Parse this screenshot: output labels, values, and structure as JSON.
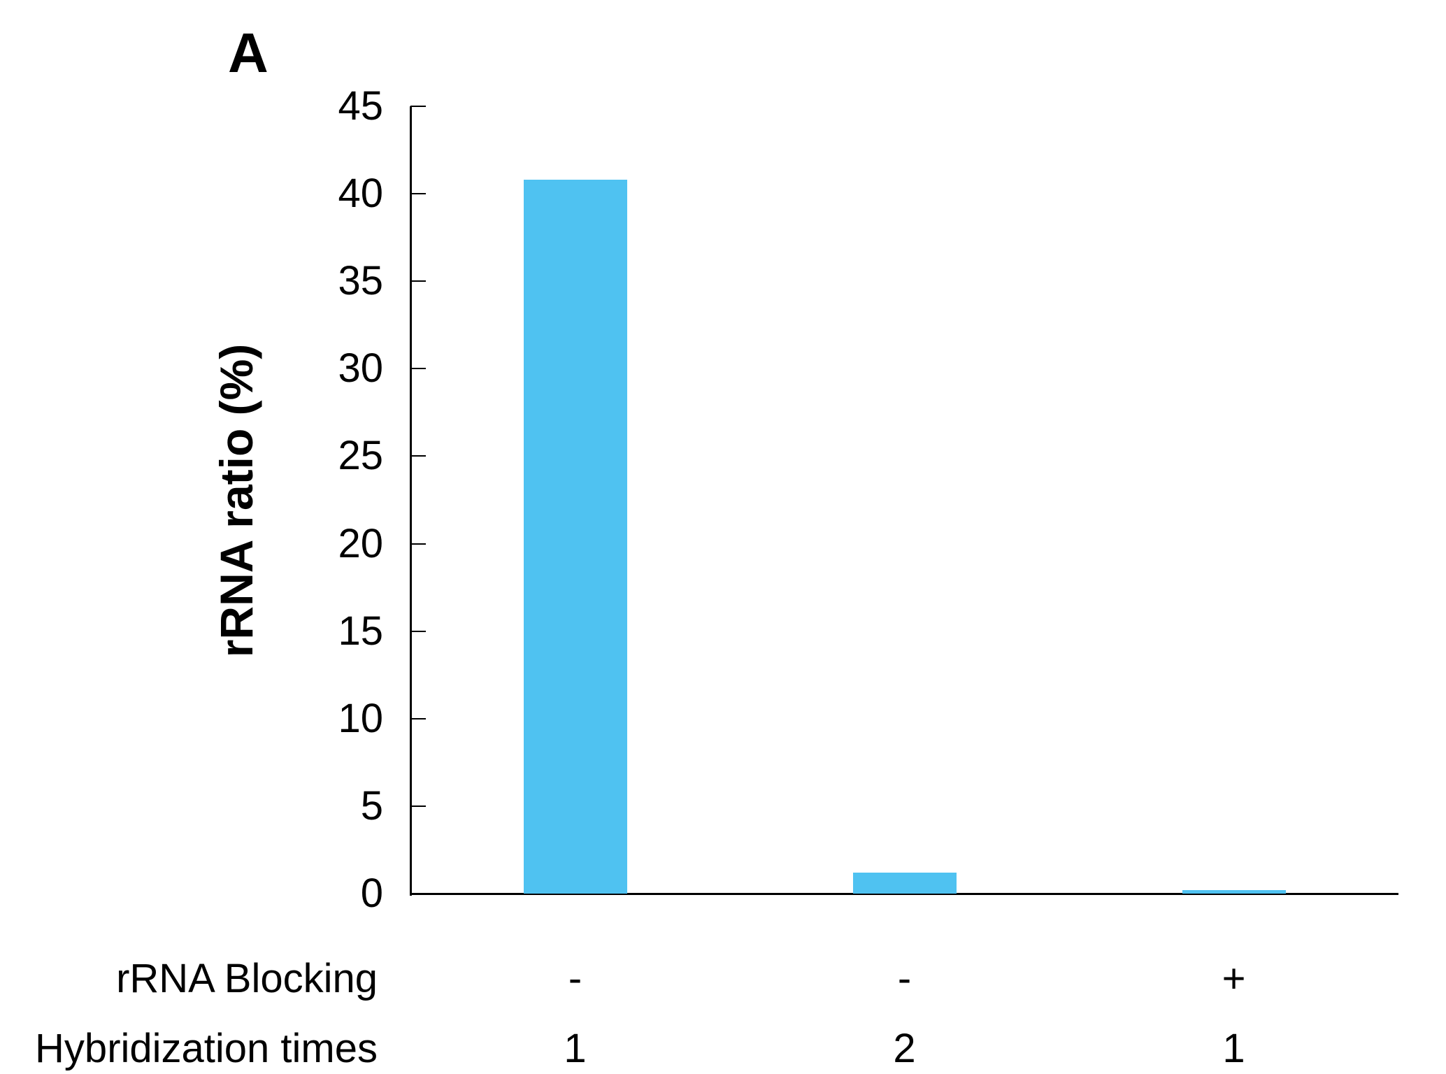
{
  "figure": {
    "panel_label": "A"
  },
  "chart_data": {
    "type": "bar",
    "title": "",
    "xlabel": "",
    "ylabel": "rRNA ratio (%)",
    "ylim": [
      0,
      45
    ],
    "yticks": [
      45,
      40,
      35,
      30,
      25,
      20,
      15,
      10,
      5,
      0
    ],
    "grid": false,
    "legend": false,
    "bar_color": "#4FC2F1",
    "axis_color": "#000000",
    "values": [
      40.8,
      1.2,
      0.2
    ],
    "annotation_rows": [
      {
        "label": "rRNA Blocking",
        "values": [
          "-",
          "-",
          "+"
        ]
      },
      {
        "label": "Hybridization times",
        "values": [
          "1",
          "2",
          "1"
        ]
      }
    ]
  }
}
